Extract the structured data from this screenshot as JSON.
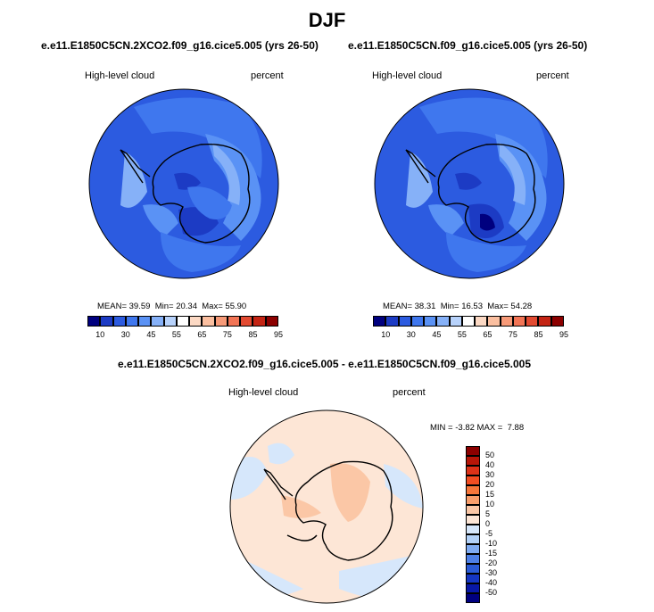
{
  "figure": {
    "title": "DJF",
    "variable": "High-level cloud",
    "units": "percent"
  },
  "panels": [
    {
      "case": "e.e11.E1850C5CN.2XCO2.f09_g16.cice5.005 (yrs 26-50)",
      "stats": {
        "mean_label": "MEAN=",
        "mean": "39.59",
        "min_label": "Min=",
        "min": "20.34",
        "max_label": "Max=",
        "max": "55.90"
      }
    },
    {
      "case": "e.e11.E1850C5CN.f09_g16.cice5.005 (yrs 26-50)",
      "stats": {
        "mean_label": "MEAN=",
        "mean": "38.31",
        "min_label": "Min=",
        "min": "16.53",
        "max_label": "Max=",
        "max": "54.28"
      }
    }
  ],
  "colorbar": {
    "ticks": [
      "10",
      "30",
      "45",
      "55",
      "65",
      "75",
      "85",
      "95"
    ],
    "colors": [
      "#00007f",
      "#1c3bc4",
      "#2c5be0",
      "#3f77ee",
      "#5a92f5",
      "#86b1f8",
      "#b7d2fb",
      "#ffffff",
      "#fcd9c4",
      "#fbbfa0",
      "#f79a78",
      "#f27455",
      "#e24a31",
      "#c42414",
      "#8c0000"
    ]
  },
  "diff": {
    "case": "e.e11.E1850C5CN.2XCO2.f09_g16.cice5.005 - e.e11.E1850C5CN.f09_g16.cice5.005",
    "min_label": "MIN =",
    "min": "-3.82",
    "max_label": "MAX =",
    "max": "7.88",
    "colorbar_ticks": [
      "50",
      "40",
      "30",
      "20",
      "15",
      "10",
      "5",
      "0",
      "-5",
      "-10",
      "-15",
      "-20",
      "-30",
      "-40",
      "-50"
    ],
    "colorbar_colors": [
      "#8b0000",
      "#b61608",
      "#dc3218",
      "#f24d22",
      "#f7763a",
      "#f99e6b",
      "#fbc7a6",
      "#fde6d6",
      "#d6e7fb",
      "#b2d1f8",
      "#7fabf2",
      "#4e80e6",
      "#2b5bd6",
      "#1536c2",
      "#0818a6",
      "#000080"
    ]
  }
}
